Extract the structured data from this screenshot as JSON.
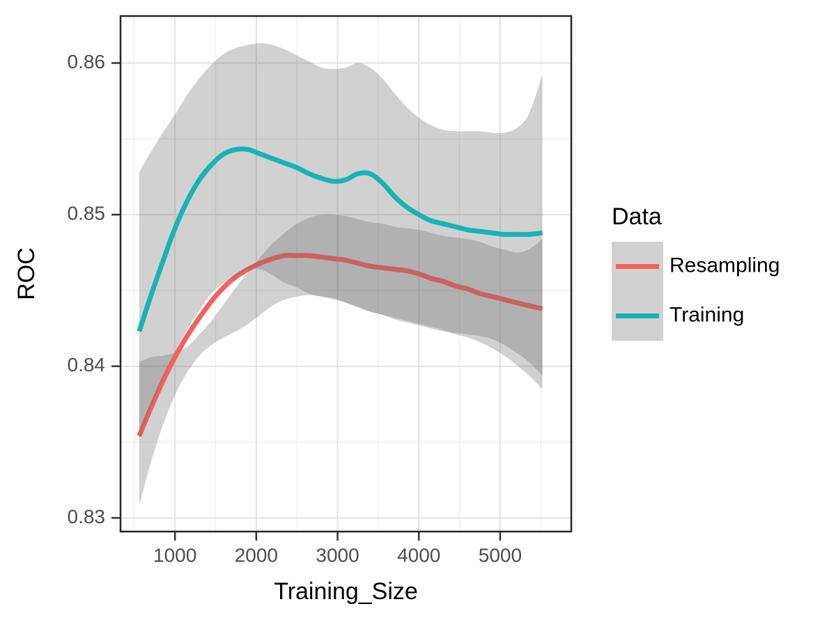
{
  "chart_data": {
    "type": "line",
    "title": "",
    "xlabel": "Training_Size",
    "ylabel": "ROC",
    "xlim": [
      330,
      5875
    ],
    "ylim": [
      0.8291,
      0.8631
    ],
    "grid": "on",
    "x_ticks": [
      1000,
      2000,
      3000,
      4000,
      5000
    ],
    "x_tick_labels": [
      "1000",
      "2000",
      "3000",
      "4000",
      "5000"
    ],
    "x_minor_ticks": [
      500,
      1500,
      2500,
      3500,
      4500,
      5500
    ],
    "y_ticks": [
      0.83,
      0.84,
      0.85,
      0.86
    ],
    "y_tick_labels": [
      "0.83",
      "0.84",
      "0.85",
      "0.86"
    ],
    "y_minor_ticks": [
      0.835,
      0.845,
      0.855
    ],
    "legend": {
      "title": "Data",
      "position": "right",
      "entries": [
        {
          "label": "Resampling",
          "color": "#F4615E"
        },
        {
          "label": "Training",
          "color": "#17B3B7"
        }
      ]
    },
    "x": [
      560,
      700,
      850,
      1000,
      1150,
      1300,
      1450,
      1600,
      1750,
      1900,
      2050,
      2200,
      2350,
      2500,
      2650,
      2800,
      2950,
      3100,
      3250,
      3400,
      3550,
      3700,
      3850,
      4000,
      4150,
      4300,
      4450,
      4600,
      4750,
      4900,
      5050,
      5200,
      5350,
      5520
    ],
    "series": [
      {
        "name": "Resampling",
        "color": "#F4615E",
        "y": [
          0.8354,
          0.8372,
          0.839,
          0.8406,
          0.842,
          0.8432,
          0.8443,
          0.8452,
          0.8459,
          0.8464,
          0.8468,
          0.8471,
          0.8473,
          0.8473,
          0.8473,
          0.8472,
          0.8471,
          0.847,
          0.8468,
          0.8466,
          0.8465,
          0.8464,
          0.8463,
          0.8461,
          0.8458,
          0.8456,
          0.8453,
          0.8451,
          0.8448,
          0.8446,
          0.8444,
          0.8442,
          0.844,
          0.8438
        ],
        "ribbon_hi": [
          0.8403,
          0.8406,
          0.8407,
          0.8409,
          0.8413,
          0.8421,
          0.843,
          0.8441,
          0.8452,
          0.8462,
          0.8472,
          0.8481,
          0.8488,
          0.8494,
          0.8498,
          0.85,
          0.85,
          0.8499,
          0.8497,
          0.8495,
          0.8494,
          0.8492,
          0.8491,
          0.849,
          0.8488,
          0.8486,
          0.8485,
          0.8484,
          0.8482,
          0.8479,
          0.8477,
          0.8475,
          0.8477,
          0.8484
        ],
        "ribbon_lo": [
          0.8308,
          0.8336,
          0.8361,
          0.8381,
          0.8396,
          0.8407,
          0.8414,
          0.8419,
          0.8423,
          0.8428,
          0.8434,
          0.844,
          0.8444,
          0.8446,
          0.8447,
          0.8446,
          0.8444,
          0.8442,
          0.8439,
          0.8436,
          0.8434,
          0.8432,
          0.843,
          0.8428,
          0.8426,
          0.8424,
          0.8421,
          0.8419,
          0.8416,
          0.8412,
          0.8407,
          0.8401,
          0.8394,
          0.8385
        ]
      },
      {
        "name": "Training",
        "color": "#17B3B7",
        "y": [
          0.8423,
          0.8446,
          0.8469,
          0.8491,
          0.8509,
          0.8523,
          0.8533,
          0.854,
          0.8543,
          0.8543,
          0.854,
          0.8537,
          0.8534,
          0.8531,
          0.8527,
          0.8524,
          0.8522,
          0.8523,
          0.8527,
          0.8527,
          0.8521,
          0.8512,
          0.8505,
          0.85,
          0.8496,
          0.8494,
          0.8492,
          0.849,
          0.8489,
          0.8488,
          0.8487,
          0.8487,
          0.8487,
          0.8488
        ],
        "ribbon_hi": [
          0.8528,
          0.8541,
          0.8554,
          0.8566,
          0.8579,
          0.859,
          0.8599,
          0.8606,
          0.861,
          0.8612,
          0.8613,
          0.8612,
          0.8609,
          0.8605,
          0.8601,
          0.8597,
          0.8596,
          0.8597,
          0.86,
          0.8597,
          0.859,
          0.858,
          0.8571,
          0.8564,
          0.8559,
          0.8556,
          0.8555,
          0.8555,
          0.8555,
          0.8554,
          0.8554,
          0.8557,
          0.8566,
          0.8592
        ],
        "ribbon_lo": [
          0.8352,
          0.8372,
          0.8392,
          0.8409,
          0.8424,
          0.8437,
          0.8448,
          0.8455,
          0.8459,
          0.8464,
          0.8464,
          0.846,
          0.8455,
          0.8452,
          0.8448,
          0.8446,
          0.8445,
          0.8442,
          0.8439,
          0.8436,
          0.8434,
          0.8431,
          0.8429,
          0.8427,
          0.8425,
          0.8423,
          0.8422,
          0.8421,
          0.842,
          0.8418,
          0.8414,
          0.8409,
          0.8403,
          0.8394
        ]
      }
    ],
    "style": {
      "ribbon_fill": "rgba(102,102,102,0.30)",
      "panel_background": "#ffffff",
      "panel_border_color": "#262626",
      "grid_major_color": "#E3E3E3",
      "grid_minor_color": "#EDEDED",
      "tick_color": "#333333",
      "tick_label_color": "#4D4D4D",
      "axis_title_color": "#000000",
      "legend_text_color": "#000000",
      "line_width": 7
    }
  }
}
